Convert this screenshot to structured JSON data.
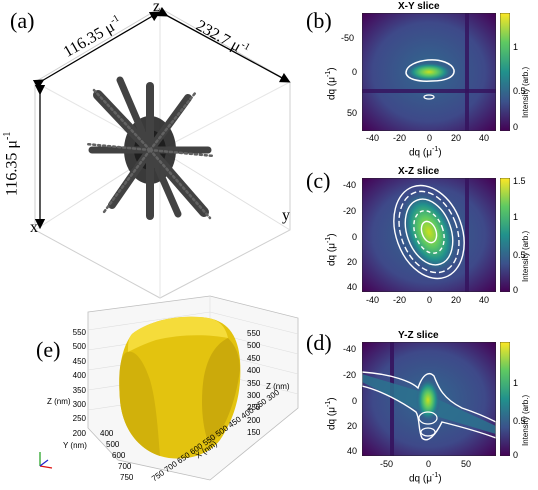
{
  "figure": {
    "panels": {
      "a": {
        "label": "(a)",
        "axes": {
          "z": "z",
          "x": "x",
          "y": "y"
        },
        "dimensions": {
          "top_left": "116.35 μ",
          "top_right": "232.7 μ",
          "left": "116.35 μ",
          "exponent": "-1"
        }
      },
      "b": {
        "label": "(b)",
        "title": "X-Y slice",
        "xlabel_base": "dq (μ",
        "xlabel_exp": "-1",
        "xlabel_close": ")",
        "ylabel_base": "dq (μ",
        "ylabel_exp": "-1",
        "ylabel_close": ")",
        "colorbar_label": "Intensity (arb.)",
        "xticks": [
          "-40",
          "-20",
          "0",
          "20",
          "40"
        ],
        "yticks": [
          "-50",
          "0",
          "50"
        ],
        "cbar_ticks": [
          "0",
          "0.5",
          "1"
        ]
      },
      "c": {
        "label": "(c)",
        "title": "X-Z slice",
        "xlabel_base": "dq (μ",
        "xlabel_exp": "-1",
        "xlabel_close": ")",
        "ylabel_base": "dq (μ",
        "ylabel_exp": "-1",
        "ylabel_close": ")",
        "colorbar_label": "Intensity (arb.)",
        "xticks": [
          "-40",
          "-20",
          "0",
          "20",
          "40"
        ],
        "yticks": [
          "-40",
          "-20",
          "0",
          "20",
          "40"
        ],
        "cbar_ticks": [
          "0",
          "0.5",
          "1",
          "1.5"
        ]
      },
      "d": {
        "label": "(d)",
        "title": "Y-Z slice",
        "xlabel_base": "dq (μ",
        "xlabel_exp": "-1",
        "xlabel_close": ")",
        "ylabel_base": "dq (μ",
        "ylabel_exp": "-1",
        "ylabel_close": ")",
        "colorbar_label": "Intensity (arb.)",
        "xticks": [
          "-50",
          "0",
          "50"
        ],
        "yticks": [
          "-40",
          "-20",
          "0",
          "20",
          "40"
        ],
        "cbar_ticks": [
          "0",
          "0.5",
          "1"
        ]
      },
      "e": {
        "label": "(e)",
        "z_left_label": "Z (nm)",
        "z_right_label": "Z (nm)",
        "y_label": "Y (nm)",
        "x_label": "X (nm)",
        "z_left_ticks": [
          "550",
          "500",
          "450",
          "400",
          "350",
          "300",
          "250",
          "200"
        ],
        "z_right_ticks": [
          "550",
          "500",
          "450",
          "400",
          "350",
          "300",
          "250",
          "200",
          "150"
        ],
        "y_ticks": [
          "400",
          "500",
          "600",
          "700",
          "750"
        ],
        "x_ticks": [
          "300",
          "350",
          "400",
          "450",
          "500",
          "550",
          "600",
          "650",
          "700",
          "750"
        ],
        "colors": {
          "crystal": "#f2d21a",
          "crystal_shade": "#c9a90a"
        }
      }
    },
    "colors": {
      "viridis_low": "#440154",
      "viridis_mid": "#21918c",
      "viridis_high": "#fde725",
      "contour": "#ffffff"
    }
  }
}
